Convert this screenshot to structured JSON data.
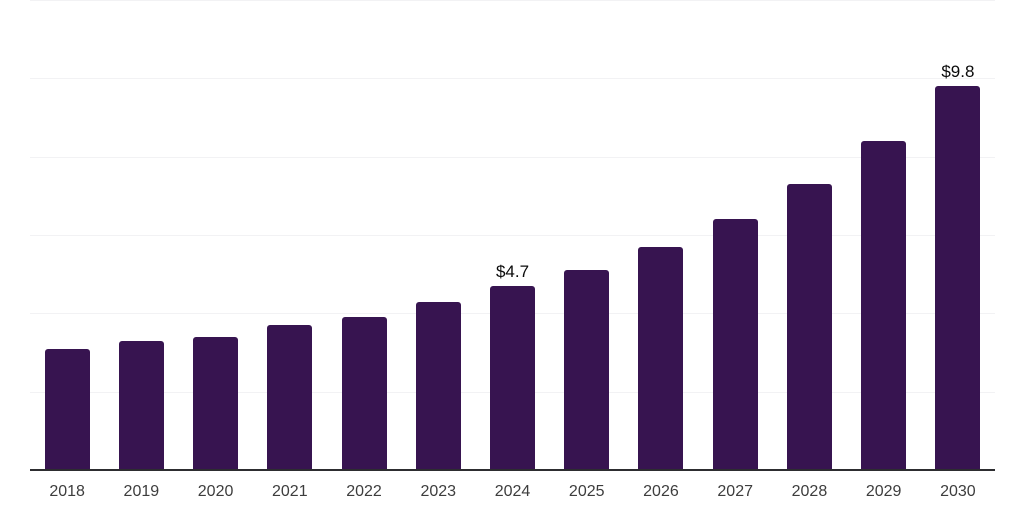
{
  "chart_data": {
    "type": "bar",
    "title": "",
    "xlabel": "",
    "ylabel": "",
    "categories": [
      "2018",
      "2019",
      "2020",
      "2021",
      "2022",
      "2023",
      "2024",
      "2025",
      "2026",
      "2027",
      "2028",
      "2029",
      "2030"
    ],
    "values": [
      3.1,
      3.3,
      3.4,
      3.7,
      3.9,
      4.3,
      4.7,
      5.1,
      5.7,
      6.4,
      7.3,
      8.4,
      9.8
    ],
    "annotations": [
      {
        "category": "2024",
        "label": "$4.7"
      },
      {
        "category": "2030",
        "label": "$9.8"
      }
    ],
    "value_prefix": "$",
    "ylim": [
      0,
      12
    ],
    "gridline_values": [
      2,
      4,
      6,
      8,
      10,
      12
    ],
    "grid": "horizontal",
    "y_axis_labels": "none",
    "legend_position": "none",
    "colors": {
      "bar": "#371450",
      "axis_line": "#2d2d30",
      "gridline": "#f2f2f4",
      "tick_label": "#3d3d3d",
      "data_label": "#0a0a0a",
      "background": "#ffffff"
    }
  }
}
